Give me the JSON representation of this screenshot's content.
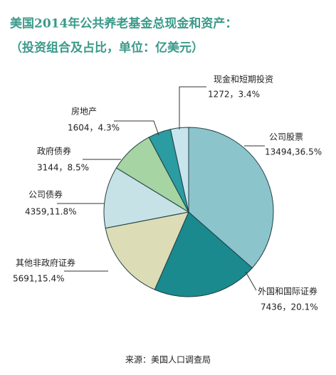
{
  "chart_data": {
    "type": "pie",
    "title": "美国2014年公共养老基金总现金和资产：",
    "subtitle": "（投资组合及占比，单位：亿美元）",
    "categories": [
      "公司股票",
      "外国和国际证券",
      "其他非政府证券",
      "公司债券",
      "政府债券",
      "房地产",
      "现金和短期投资"
    ],
    "values": [
      13494,
      7436,
      5691,
      4359,
      3144,
      1604,
      1272
    ],
    "value_labels": [
      "13494,36.5%",
      "7436，20.1%",
      "5691,15.4%",
      "4359,11.8%",
      "3144，8.5%",
      "1604，4.3%",
      "1272，3.4%"
    ],
    "colors": [
      "#8cc4cc",
      "#1a8a8e",
      "#dcdcb6",
      "#c6e2e6",
      "#a6d4a2",
      "#2a9ca2",
      "#c8e4ec"
    ],
    "source": "来源：美国人口调查局"
  }
}
